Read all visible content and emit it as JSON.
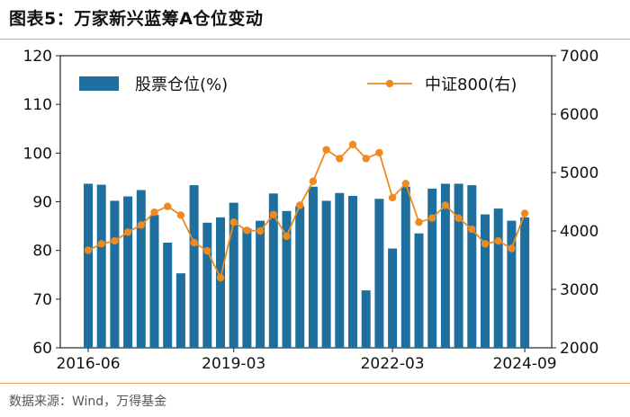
{
  "header": {
    "title": "图表5：万家新兴蓝筹A仓位变动"
  },
  "footer": {
    "source": "数据来源：Wind，万得基金"
  },
  "colors": {
    "bar": "#1f6f9e",
    "line": "#ee8a1f",
    "rule": "#f0a060"
  },
  "chart_data": {
    "type": "bar+line",
    "title": "图表5：万家新兴蓝筹A仓位变动",
    "x_tick_labels": [
      "2016-06",
      "2019-03",
      "2022-03",
      "2024-09"
    ],
    "x_tick_indices": [
      0,
      11,
      23,
      33
    ],
    "ylim_left": [
      60,
      120
    ],
    "yticks_left": [
      60,
      70,
      80,
      90,
      100,
      110,
      120
    ],
    "ylim_right": [
      2000,
      7000
    ],
    "yticks_right": [
      2000,
      3000,
      4000,
      5000,
      6000,
      7000
    ],
    "legend": {
      "bar": "股票仓位(%)",
      "line": "中证800(右)"
    },
    "series": [
      {
        "name": "股票仓位(%)",
        "type": "bar",
        "axis": "left",
        "values": [
          93.7,
          93.5,
          90.2,
          91.1,
          92.4,
          87.3,
          81.6,
          75.3,
          93.4,
          85.7,
          86.8,
          89.8,
          84.5,
          86.1,
          91.7,
          88.1,
          89.1,
          93.1,
          90.2,
          91.8,
          91.2,
          71.8,
          90.6,
          80.4,
          93.1,
          83.5,
          92.7,
          93.7,
          93.7,
          93.4,
          87.4,
          88.6,
          86.1,
          86.8
        ]
      },
      {
        "name": "中证800(右)",
        "type": "line",
        "axis": "right",
        "values": [
          3670,
          3780,
          3830,
          3980,
          4100,
          4320,
          4420,
          4270,
          3800,
          3660,
          3200,
          4150,
          4010,
          4000,
          4280,
          3910,
          4440,
          4850,
          5390,
          5240,
          5480,
          5240,
          5340,
          4570,
          4810,
          4150,
          4220,
          4440,
          4220,
          4030,
          3780,
          3830,
          3700,
          4300
        ]
      }
    ]
  }
}
